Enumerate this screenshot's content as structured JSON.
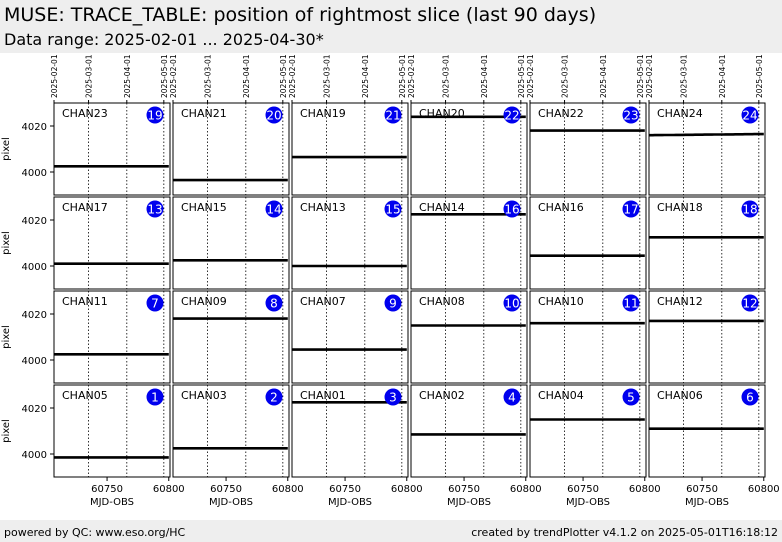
{
  "header": {
    "title": "MUSE: TRACE_TABLE: position of rightmost slice (last 90 days)",
    "subtitle": "Data range: 2025-02-01 ... 2025-04-30*"
  },
  "footer": {
    "left": "powered by QC: www.eso.org/HC",
    "right": "created by trendPlotter v4.1.2 on 2025-05-01T16:18:12"
  },
  "colors": {
    "badge": "#0000ee",
    "data": "#000000"
  },
  "chart_data": {
    "type": "scatter",
    "layout": "small-multiples 4x6",
    "xlabel": "MJD-OBS",
    "ylabel": "pixel",
    "xlim": [
      60707,
      60801
    ],
    "ylim": [
      3990,
      4030
    ],
    "x_ticks": [
      60750,
      60800
    ],
    "y_ticks": [
      4000,
      4020
    ],
    "date_ticks": [
      "2025-02-01",
      "2025-03-01",
      "2025-04-01",
      "2025-05-01"
    ],
    "date_tick_mjd": [
      60707,
      60735,
      60766,
      60796
    ],
    "panels": [
      {
        "name": "CHAN23",
        "badge": "19",
        "x": [
          60707,
          60800
        ],
        "y": [
          4002.5,
          4002.5
        ]
      },
      {
        "name": "CHAN21",
        "badge": "20",
        "x": [
          60707,
          60800
        ],
        "y": [
          3996.5,
          3996.5
        ]
      },
      {
        "name": "CHAN19",
        "badge": "21",
        "x": [
          60707,
          60800
        ],
        "y": [
          4006.5,
          4006.5
        ]
      },
      {
        "name": "CHAN20",
        "badge": "22",
        "x": [
          60707,
          60800
        ],
        "y": [
          4024.0,
          4024.0
        ]
      },
      {
        "name": "CHAN22",
        "badge": "23",
        "x": [
          60707,
          60800
        ],
        "y": [
          4018.0,
          4018.0
        ]
      },
      {
        "name": "CHAN24",
        "badge": "24",
        "x": [
          60707,
          60800
        ],
        "y": [
          4016.0,
          4016.5
        ]
      },
      {
        "name": "CHAN17",
        "badge": "13",
        "x": [
          60707,
          60800
        ],
        "y": [
          4001.0,
          4001.0
        ]
      },
      {
        "name": "CHAN15",
        "badge": "14",
        "x": [
          60707,
          60800
        ],
        "y": [
          4002.5,
          4002.5
        ]
      },
      {
        "name": "CHAN13",
        "badge": "15",
        "x": [
          60707,
          60800
        ],
        "y": [
          4000.0,
          4000.0
        ]
      },
      {
        "name": "CHAN14",
        "badge": "16",
        "x": [
          60707,
          60800
        ],
        "y": [
          4022.5,
          4022.5
        ]
      },
      {
        "name": "CHAN16",
        "badge": "17",
        "x": [
          60707,
          60800
        ],
        "y": [
          4004.5,
          4004.5
        ]
      },
      {
        "name": "CHAN18",
        "badge": "18",
        "x": [
          60707,
          60800
        ],
        "y": [
          4012.5,
          4012.5
        ]
      },
      {
        "name": "CHAN11",
        "badge": "7",
        "x": [
          60707,
          60800
        ],
        "y": [
          4002.5,
          4002.5
        ]
      },
      {
        "name": "CHAN09",
        "badge": "8",
        "x": [
          60707,
          60800
        ],
        "y": [
          4018.0,
          4018.0
        ]
      },
      {
        "name": "CHAN07",
        "badge": "9",
        "x": [
          60707,
          60800
        ],
        "y": [
          4004.5,
          4004.5
        ]
      },
      {
        "name": "CHAN08",
        "badge": "10",
        "x": [
          60707,
          60800
        ],
        "y": [
          4015.0,
          4015.0
        ]
      },
      {
        "name": "CHAN10",
        "badge": "11",
        "x": [
          60707,
          60800
        ],
        "y": [
          4016.0,
          4016.0
        ]
      },
      {
        "name": "CHAN12",
        "badge": "12",
        "x": [
          60707,
          60800
        ],
        "y": [
          4017.0,
          4017.0
        ]
      },
      {
        "name": "CHAN05",
        "badge": "1",
        "x": [
          60707,
          60800
        ],
        "y": [
          3998.5,
          3998.5
        ]
      },
      {
        "name": "CHAN03",
        "badge": "2",
        "x": [
          60707,
          60800
        ],
        "y": [
          4002.5,
          4002.5
        ]
      },
      {
        "name": "CHAN01",
        "badge": "3",
        "x": [
          60707,
          60800
        ],
        "y": [
          4022.5,
          4022.5
        ]
      },
      {
        "name": "CHAN02",
        "badge": "4",
        "x": [
          60707,
          60800
        ],
        "y": [
          4008.5,
          4008.5
        ]
      },
      {
        "name": "CHAN04",
        "badge": "5",
        "x": [
          60707,
          60800
        ],
        "y": [
          4015.0,
          4015.0
        ]
      },
      {
        "name": "CHAN06",
        "badge": "6",
        "x": [
          60707,
          60800
        ],
        "y": [
          4011.0,
          4011.0
        ]
      }
    ]
  }
}
